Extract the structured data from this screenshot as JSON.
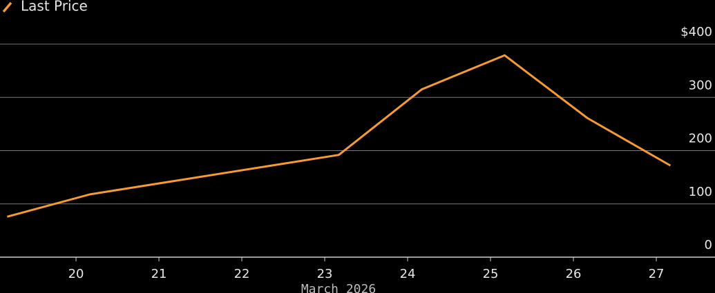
{
  "chart_data": {
    "type": "line",
    "x": [
      19.17,
      20.17,
      23.17,
      24.17,
      25.17,
      26.17,
      27.17
    ],
    "series": [
      {
        "name": "Last Price",
        "color": "#f59a35",
        "values": [
          76,
          118,
          192,
          315,
          379,
          261,
          172
        ]
      }
    ],
    "xlim": [
      19.083,
      27.708
    ],
    "xticks": [
      20,
      21,
      22,
      23,
      24,
      25,
      26,
      27
    ],
    "xlabel": "March 2026",
    "ylim": [
      0,
      400
    ],
    "yticks": [
      0,
      100,
      200,
      300,
      {
        "value": 400,
        "label": "$400"
      }
    ],
    "grid": true,
    "legend": "top-left"
  }
}
